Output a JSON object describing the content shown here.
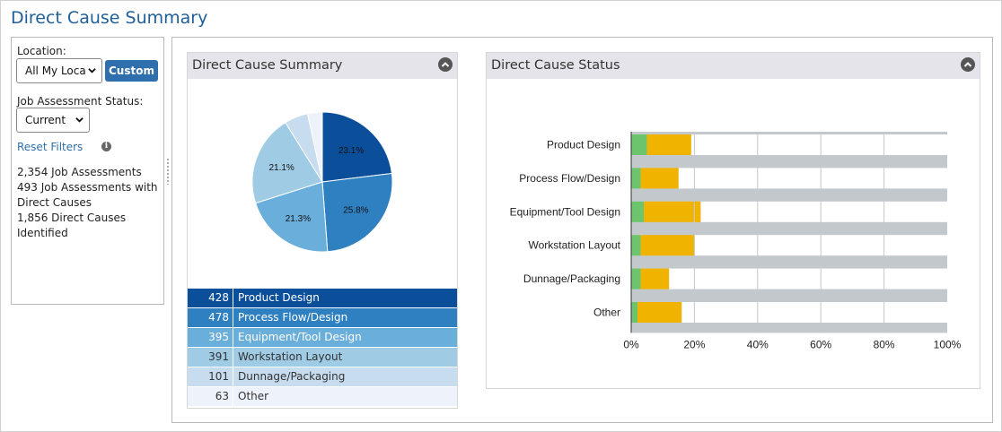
{
  "page": {
    "title": "Direct Cause Summary"
  },
  "filters": {
    "location_label": "Location:",
    "location_value": "All My Loca",
    "custom_label": "Custom",
    "status_label": "Job Assessment Status:",
    "status_value": "Current",
    "reset_label": "Reset Filters",
    "info_glyph": "i",
    "summary": [
      "2,354 Job Assessments",
      "493 Job Assessments with Direct Causes",
      "1,856 Direct Causes Identified"
    ]
  },
  "summary_card": {
    "title": "Direct Cause Summary",
    "collapse_icon": "chevron-up-icon",
    "rows": [
      {
        "count": "428",
        "label": "Product Design",
        "color": "#0b4f9b",
        "text_color": "#ffffff"
      },
      {
        "count": "478",
        "label": "Process Flow/Design",
        "color": "#2f80c1",
        "text_color": "#ffffff"
      },
      {
        "count": "395",
        "label": "Equipment/Tool Design",
        "color": "#6aaedb",
        "text_color": "#ffffff"
      },
      {
        "count": "391",
        "label": "Workstation Layout",
        "color": "#a0cbe5",
        "text_color": "#333333"
      },
      {
        "count": "101",
        "label": "Dunnage/Packaging",
        "color": "#c8dcf0",
        "text_color": "#333333"
      },
      {
        "count": "63",
        "label": "Other",
        "color": "#eef2fb",
        "text_color": "#333333"
      }
    ]
  },
  "status_card": {
    "title": "Direct Cause Status",
    "collapse_icon": "chevron-up-icon"
  },
  "chart_data": [
    {
      "type": "pie",
      "categories": [
        "Product Design",
        "Process Flow/Design",
        "Equipment/Tool Design",
        "Workstation Layout",
        "Dunnage/Packaging",
        "Other"
      ],
      "values": [
        428,
        478,
        395,
        391,
        101,
        63
      ],
      "data_labels": [
        "23.1%",
        "25.8%",
        "21.3%",
        "21.1%",
        "",
        ""
      ],
      "colors": [
        "#0b4f9b",
        "#2f80c1",
        "#6aaedb",
        "#a0cbe5",
        "#c8dcf0",
        "#eef2fb"
      ]
    },
    {
      "type": "bar",
      "orientation": "horizontal",
      "stacked": true,
      "categories": [
        "Product Design",
        "Process Flow/Design",
        "Equipment/Tool Design",
        "Workstation Layout",
        "Dunnage/Packaging",
        "Other"
      ],
      "series": [
        {
          "values": [
            5,
            3,
            4,
            3,
            3,
            2
          ],
          "color": "#6cc56c"
        },
        {
          "values": [
            14,
            12,
            18,
            17,
            9,
            14
          ],
          "color": "#f0b400"
        },
        {
          "values": [
            81,
            85,
            78,
            80,
            88,
            84
          ],
          "color": "#ffffff"
        }
      ],
      "background_color": "#c3c8cd",
      "xlim": [
        0,
        100
      ],
      "x_ticks": [
        "0%",
        "20%",
        "40%",
        "60%",
        "80%",
        "100%"
      ],
      "grid": true
    }
  ]
}
